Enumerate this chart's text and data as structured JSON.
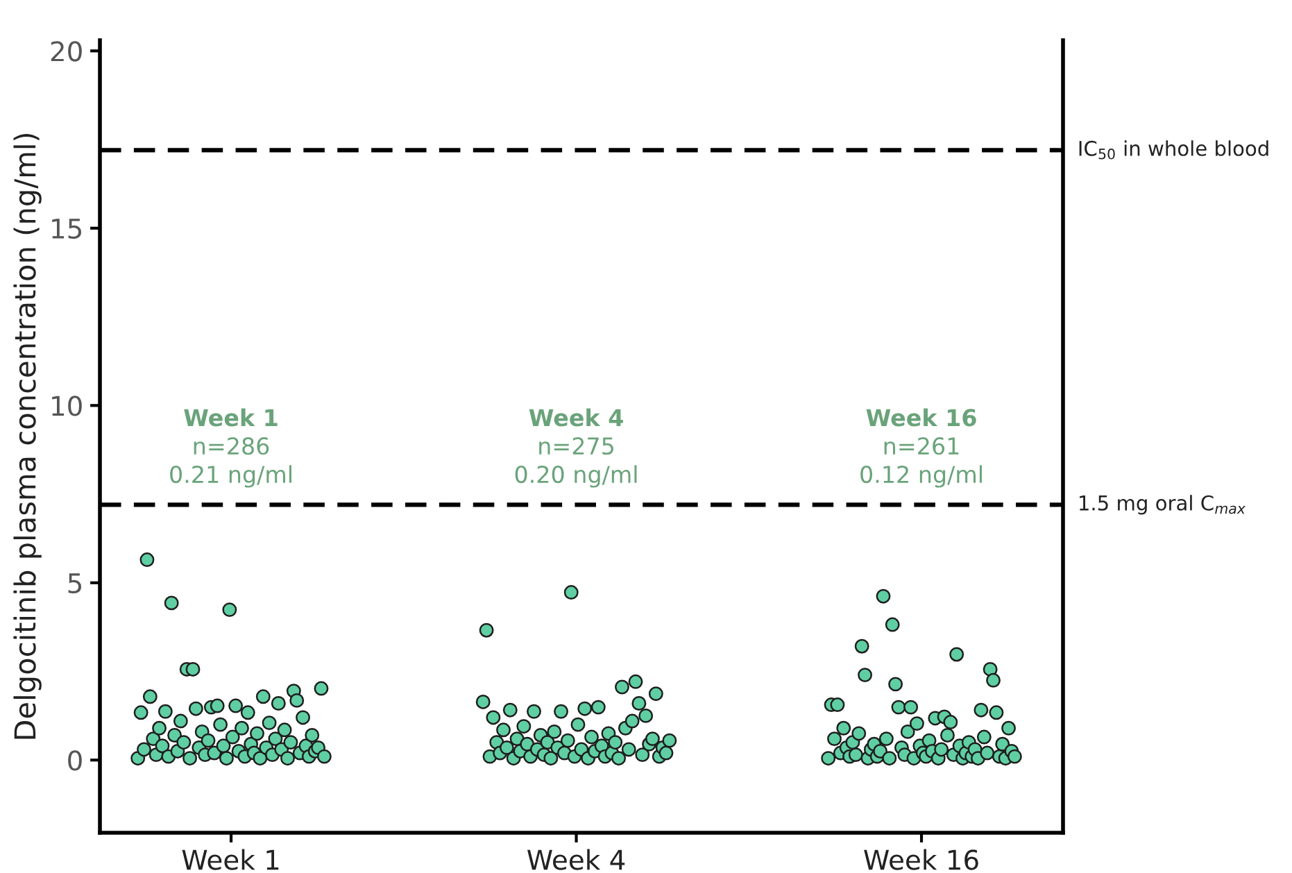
{
  "chart_data": {
    "type": "scatter",
    "ylabel": "Delgocitinib plasma concentration (ng/ml)",
    "categories": [
      "Week 1",
      "Week 4",
      "Week 16"
    ],
    "ylim": [
      -2.05,
      20.3
    ],
    "yticks": [
      0,
      5,
      10,
      15,
      20
    ],
    "grid": false,
    "marker": "circle",
    "series": [
      {
        "color": "#5fcfa3",
        "x": [
          "Week 1",
          "Week 1",
          "Week 1",
          "Week 1",
          "Week 1",
          "Week 1",
          "Week 1",
          "Week 1",
          "Week 1",
          "Week 1",
          "Week 1",
          "Week 1",
          "Week 1",
          "Week 1",
          "Week 1",
          "Week 1",
          "Week 1",
          "Week 1",
          "Week 1",
          "Week 1",
          "Week 1",
          "Week 1",
          "Week 1",
          "Week 1",
          "Week 1",
          "Week 1",
          "Week 1",
          "Week 1",
          "Week 1",
          "Week 1",
          "Week 1",
          "Week 1",
          "Week 1",
          "Week 1",
          "Week 1",
          "Week 1",
          "Week 1",
          "Week 1",
          "Week 1",
          "Week 1",
          "Week 1",
          "Week 1",
          "Week 1",
          "Week 1",
          "Week 1",
          "Week 1",
          "Week 1",
          "Week 1",
          "Week 1",
          "Week 1",
          "Week 1",
          "Week 1",
          "Week 1",
          "Week 1",
          "Week 1",
          "Week 1",
          "Week 1",
          "Week 1",
          "Week 1",
          "Week 1",
          "Week 1",
          "Week 1"
        ],
        "values": [
          0.05,
          1.34,
          0.3,
          5.65,
          1.79,
          0.6,
          0.15,
          0.9,
          0.4,
          1.37,
          0.1,
          4.43,
          0.7,
          0.25,
          1.1,
          0.5,
          2.56,
          0.05,
          2.56,
          1.45,
          0.35,
          0.8,
          0.15,
          0.55,
          1.49,
          0.2,
          1.53,
          1.0,
          0.4,
          0.05,
          4.24,
          0.65,
          1.53,
          0.25,
          0.9,
          0.1,
          1.34,
          0.45,
          0.2,
          0.75,
          0.05,
          1.79,
          0.35,
          1.05,
          0.15,
          0.6,
          1.6,
          0.3,
          0.85,
          0.05,
          0.5,
          1.95,
          1.68,
          0.2,
          1.2,
          0.4,
          0.1,
          0.7,
          0.25,
          0.35,
          2.02,
          0.1
        ]
      },
      {
        "color": "#5fcfa3",
        "x": [
          "Week 4",
          "Week 4",
          "Week 4",
          "Week 4",
          "Week 4",
          "Week 4",
          "Week 4",
          "Week 4",
          "Week 4",
          "Week 4",
          "Week 4",
          "Week 4",
          "Week 4",
          "Week 4",
          "Week 4",
          "Week 4",
          "Week 4",
          "Week 4",
          "Week 4",
          "Week 4",
          "Week 4",
          "Week 4",
          "Week 4",
          "Week 4",
          "Week 4",
          "Week 4",
          "Week 4",
          "Week 4",
          "Week 4",
          "Week 4",
          "Week 4",
          "Week 4",
          "Week 4",
          "Week 4",
          "Week 4",
          "Week 4",
          "Week 4",
          "Week 4",
          "Week 4",
          "Week 4",
          "Week 4",
          "Week 4",
          "Week 4",
          "Week 4",
          "Week 4",
          "Week 4",
          "Week 4",
          "Week 4",
          "Week 4",
          "Week 4",
          "Week 4",
          "Week 4",
          "Week 4",
          "Week 4",
          "Week 4",
          "Week 4"
        ],
        "values": [
          1.64,
          3.66,
          0.1,
          1.2,
          0.5,
          0.2,
          0.85,
          0.35,
          1.41,
          0.05,
          0.6,
          0.25,
          0.95,
          0.45,
          0.1,
          1.37,
          0.3,
          0.7,
          0.15,
          0.5,
          0.05,
          0.8,
          0.35,
          1.37,
          0.2,
          0.55,
          4.73,
          0.1,
          1.0,
          0.3,
          1.45,
          0.05,
          0.65,
          0.25,
          1.49,
          0.4,
          0.1,
          0.75,
          0.2,
          0.5,
          0.05,
          2.06,
          0.9,
          0.3,
          1.1,
          2.21,
          1.6,
          0.15,
          1.25,
          0.45,
          0.6,
          1.87,
          0.1,
          0.35,
          0.2,
          0.55
        ]
      },
      {
        "color": "#5fcfa3",
        "x": [
          "Week 16",
          "Week 16",
          "Week 16",
          "Week 16",
          "Week 16",
          "Week 16",
          "Week 16",
          "Week 16",
          "Week 16",
          "Week 16",
          "Week 16",
          "Week 16",
          "Week 16",
          "Week 16",
          "Week 16",
          "Week 16",
          "Week 16",
          "Week 16",
          "Week 16",
          "Week 16",
          "Week 16",
          "Week 16",
          "Week 16",
          "Week 16",
          "Week 16",
          "Week 16",
          "Week 16",
          "Week 16",
          "Week 16",
          "Week 16",
          "Week 16",
          "Week 16",
          "Week 16",
          "Week 16",
          "Week 16",
          "Week 16",
          "Week 16",
          "Week 16",
          "Week 16",
          "Week 16",
          "Week 16",
          "Week 16",
          "Week 16",
          "Week 16",
          "Week 16",
          "Week 16",
          "Week 16",
          "Week 16",
          "Week 16",
          "Week 16",
          "Week 16",
          "Week 16",
          "Week 16",
          "Week 16",
          "Week 16",
          "Week 16",
          "Week 16",
          "Week 16",
          "Week 16",
          "Week 16",
          "Week 16",
          "Week 16"
        ],
        "values": [
          0.05,
          1.56,
          0.6,
          1.56,
          0.2,
          0.9,
          0.35,
          0.1,
          0.5,
          0.15,
          0.75,
          3.21,
          2.4,
          0.05,
          0.3,
          0.45,
          0.1,
          0.25,
          4.62,
          0.6,
          0.05,
          3.82,
          2.14,
          1.49,
          0.35,
          0.15,
          0.8,
          1.49,
          0.05,
          1.03,
          0.4,
          0.2,
          0.1,
          0.55,
          0.25,
          1.18,
          0.05,
          0.3,
          1.22,
          0.7,
          1.07,
          0.15,
          2.98,
          0.4,
          0.05,
          0.2,
          0.5,
          0.1,
          0.3,
          0.05,
          1.41,
          0.65,
          0.2,
          2.56,
          2.25,
          1.34,
          0.1,
          0.45,
          0.05,
          0.9,
          0.25,
          0.1
        ]
      }
    ],
    "ref_lines": [
      {
        "axis": "y",
        "value": 17.2,
        "label": "IC$_{50}$ in whole blood",
        "color": "#000000",
        "line_style": "dashed"
      },
      {
        "axis": "y",
        "value": 7.2,
        "label": "1.5 mg oral C$_{max}$",
        "color": "#000000",
        "line_style": "dashed"
      }
    ],
    "annotations": [
      "Week 1",
      "n=286",
      "0.21 ng/ml",
      "Week 4",
      "n=275",
      "0.20 ng/ml",
      "Week 16",
      "n=261",
      "0.12 ng/ml"
    ]
  }
}
